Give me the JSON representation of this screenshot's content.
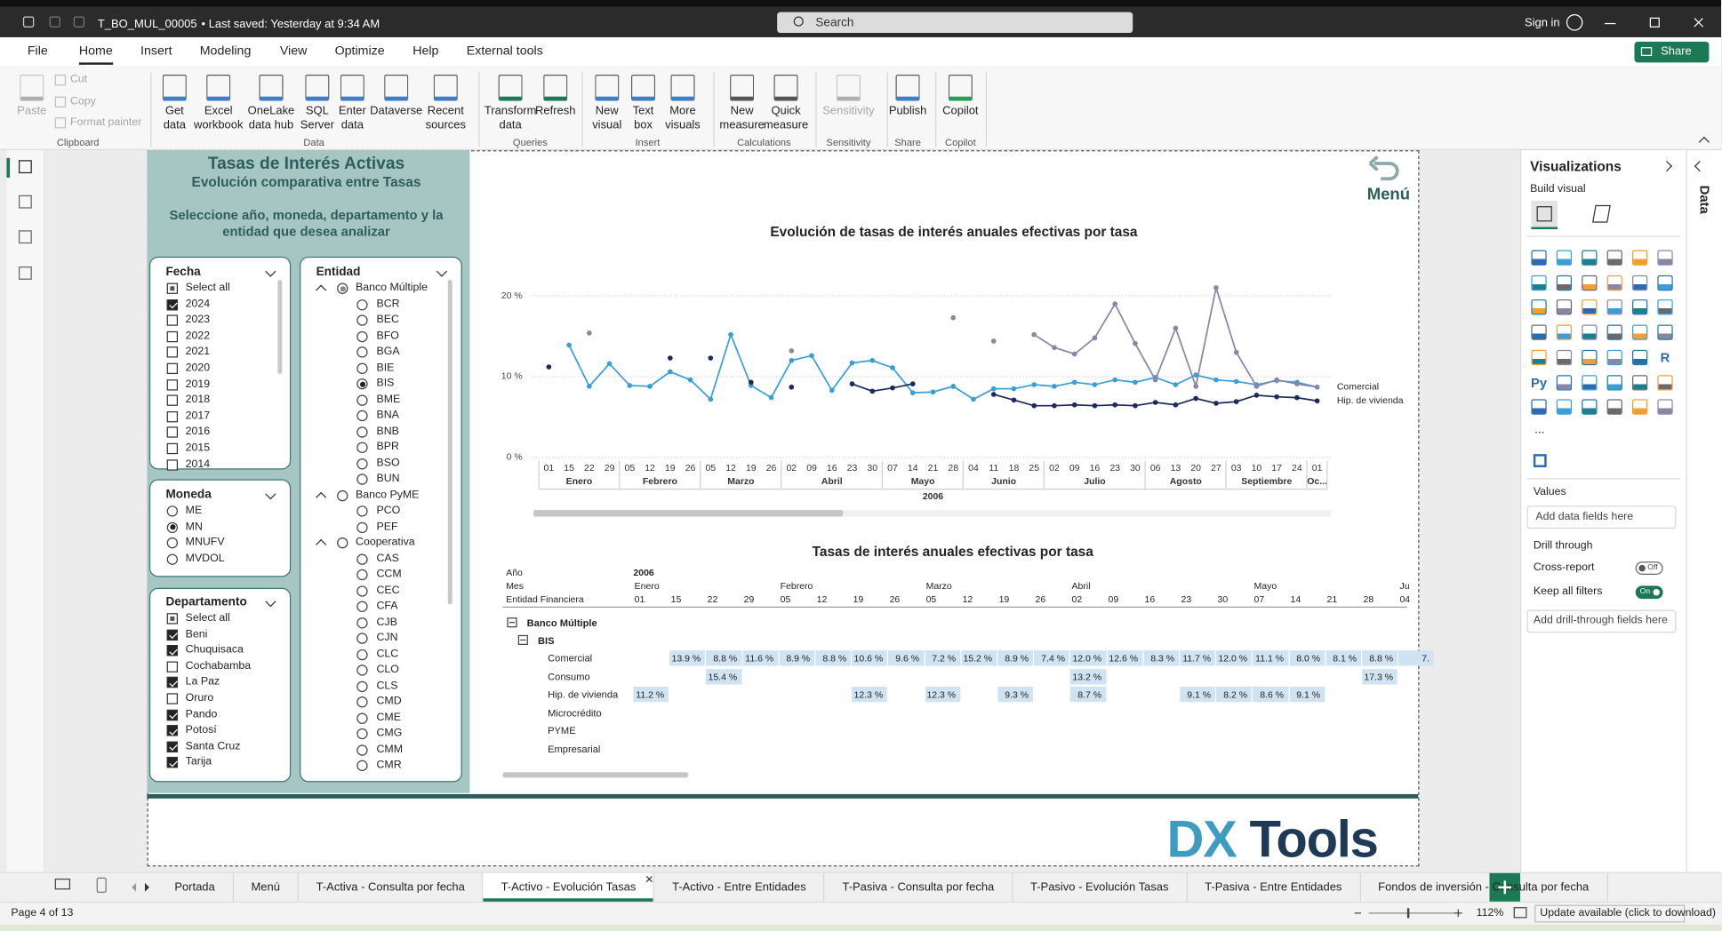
{
  "titlebar": {
    "file": "T_BO_MUL_00005",
    "saved": "• Last saved: Yesterday at 9:34 AM",
    "search": "Search",
    "signin": "Sign in"
  },
  "menu": [
    "File",
    "Home",
    "Insert",
    "Modeling",
    "View",
    "Optimize",
    "Help",
    "External tools"
  ],
  "share": "Share",
  "ribbon": [
    {
      "group": "Clipboard",
      "disabled": true,
      "buttons": [
        "Paste"
      ],
      "small": [
        "Cut",
        "Copy",
        "Format painter"
      ]
    },
    {
      "group": "Data",
      "buttons": [
        "Get\ndata",
        "Excel\nworkbook",
        "OneLake\ndata hub",
        "SQL\nServer",
        "Enter\ndata",
        "Dataverse",
        "Recent\nsources"
      ]
    },
    {
      "group": "Queries",
      "buttons": [
        "Transform\ndata",
        "Refresh"
      ]
    },
    {
      "group": "Insert",
      "buttons": [
        "New\nvisual",
        "Text\nbox",
        "More\nvisuals"
      ]
    },
    {
      "group": "Calculations",
      "buttons": [
        "New\nmeasure",
        "Quick\nmeasure"
      ]
    },
    {
      "group": "Sensitivity",
      "disabled": true,
      "buttons": [
        "Sensitivity"
      ]
    },
    {
      "group": "Share",
      "buttons": [
        "Publish"
      ]
    },
    {
      "group": "Copilot",
      "buttons": [
        "Copilot"
      ]
    }
  ],
  "report": {
    "title": "Tasas de Interés Activas",
    "subtitle": "Evolución comparativa entre Tasas",
    "instruction": "Seleccione año, moneda, departamento y la entidad que desea analizar",
    "menu_button": "Menú",
    "logo": [
      "DX",
      "Tools"
    ]
  },
  "slicers": {
    "fecha": {
      "title": "Fecha",
      "items": [
        {
          "label": "Select all",
          "checked": "partial"
        },
        {
          "label": "2024",
          "checked": true
        },
        {
          "label": "2023",
          "checked": false
        },
        {
          "label": "2022",
          "checked": false
        },
        {
          "label": "2021",
          "checked": false
        },
        {
          "label": "2020",
          "checked": false
        },
        {
          "label": "2019",
          "checked": false
        },
        {
          "label": "2018",
          "checked": false
        },
        {
          "label": "2017",
          "checked": false
        },
        {
          "label": "2016",
          "checked": false
        },
        {
          "label": "2015",
          "checked": false
        },
        {
          "label": "2014",
          "checked": false
        }
      ]
    },
    "moneda": {
      "title": "Moneda",
      "items": [
        {
          "label": "ME",
          "checked": false
        },
        {
          "label": "MN",
          "checked": true
        },
        {
          "label": "MNUFV",
          "checked": false
        },
        {
          "label": "MVDOL",
          "checked": false
        }
      ]
    },
    "departamento": {
      "title": "Departamento",
      "items": [
        {
          "label": "Select all",
          "checked": "partial"
        },
        {
          "label": "Beni",
          "checked": true
        },
        {
          "label": "Chuquisaca",
          "checked": true
        },
        {
          "label": "Cochabamba",
          "checked": false
        },
        {
          "label": "La Paz",
          "checked": true
        },
        {
          "label": "Oruro",
          "checked": false
        },
        {
          "label": "Pando",
          "checked": true
        },
        {
          "label": "Potosí",
          "checked": true
        },
        {
          "label": "Santa Cruz",
          "checked": true
        },
        {
          "label": "Tarija",
          "checked": true
        }
      ]
    },
    "entidad": {
      "title": "Entidad",
      "groups": [
        {
          "label": "Banco Múltiple",
          "checked": "partial",
          "items": [
            {
              "label": "BCR",
              "checked": false
            },
            {
              "label": "BEC",
              "checked": false
            },
            {
              "label": "BFO",
              "checked": false
            },
            {
              "label": "BGA",
              "checked": false
            },
            {
              "label": "BIE",
              "checked": false
            },
            {
              "label": "BIS",
              "checked": true
            },
            {
              "label": "BME",
              "checked": false
            },
            {
              "label": "BNA",
              "checked": false
            },
            {
              "label": "BNB",
              "checked": false
            },
            {
              "label": "BPR",
              "checked": false
            },
            {
              "label": "BSO",
              "checked": false
            },
            {
              "label": "BUN",
              "checked": false
            }
          ]
        },
        {
          "label": "Banco PyME",
          "checked": false,
          "items": [
            {
              "label": "PCO",
              "checked": false
            },
            {
              "label": "PEF",
              "checked": false
            }
          ]
        },
        {
          "label": "Cooperativa",
          "checked": false,
          "items": [
            {
              "label": "CAS",
              "checked": false
            },
            {
              "label": "CCM",
              "checked": false
            },
            {
              "label": "CEC",
              "checked": false
            },
            {
              "label": "CFA",
              "checked": false
            },
            {
              "label": "CJB",
              "checked": false
            },
            {
              "label": "CJN",
              "checked": false
            },
            {
              "label": "CLC",
              "checked": false
            },
            {
              "label": "CLO",
              "checked": false
            },
            {
              "label": "CLS",
              "checked": false
            },
            {
              "label": "CMD",
              "checked": false
            },
            {
              "label": "CME",
              "checked": false
            },
            {
              "label": "CMG",
              "checked": false
            },
            {
              "label": "CMM",
              "checked": false
            },
            {
              "label": "CMR",
              "checked": false
            }
          ]
        }
      ]
    }
  },
  "chart_data": {
    "type": "line",
    "title": "Evolución de tasas de interés anuales efectivas por tasa",
    "categories": [
      "01",
      "15",
      "22",
      "29",
      "05",
      "12",
      "19",
      "26",
      "05",
      "12",
      "19",
      "26",
      "02",
      "09",
      "16",
      "23",
      "30",
      "07",
      "14",
      "21",
      "28",
      "04",
      "11",
      "18",
      "25",
      "02",
      "09",
      "16",
      "23",
      "30",
      "06",
      "13",
      "20",
      "27",
      "03",
      "10",
      "17",
      "24",
      "01"
    ],
    "x_groups": [
      {
        "label": "Enero",
        "count": 4
      },
      {
        "label": "Febrero",
        "count": 4
      },
      {
        "label": "Marzo",
        "count": 4
      },
      {
        "label": "Abril",
        "count": 5
      },
      {
        "label": "Mayo",
        "count": 4
      },
      {
        "label": "Junio",
        "count": 4
      },
      {
        "label": "Julio",
        "count": 5
      },
      {
        "label": "Agosto",
        "count": 4
      },
      {
        "label": "Septiembre",
        "count": 4
      },
      {
        "label": "Oc...",
        "count": 1
      }
    ],
    "x_year": "2006",
    "series": [
      {
        "name": "Comercial",
        "color": "#3a9fd6",
        "values": [
          null,
          13.9,
          8.8,
          11.6,
          8.9,
          8.8,
          10.6,
          9.6,
          7.2,
          15.2,
          8.9,
          7.4,
          12.0,
          12.6,
          8.3,
          11.7,
          12.0,
          11.1,
          8.0,
          8.1,
          8.8,
          7.2,
          8.5,
          8.5,
          9.0,
          8.8,
          9.3,
          9.0,
          9.6,
          9.3,
          9.9,
          9.0,
          10.2,
          9.6,
          9.4,
          9.0,
          9.5,
          9.3,
          8.7
        ]
      },
      {
        "name": "Hip. de vivienda",
        "color": "#1c2a5c",
        "values": [
          11.2,
          null,
          null,
          null,
          null,
          null,
          12.3,
          null,
          12.3,
          null,
          9.3,
          null,
          8.7,
          null,
          null,
          9.1,
          8.2,
          8.6,
          9.1,
          null,
          null,
          null,
          7.8,
          7.1,
          6.4,
          6.4,
          6.5,
          6.4,
          6.5,
          6.4,
          6.8,
          6.5,
          7.3,
          6.7,
          6.9,
          7.7,
          7.5,
          7.4,
          7.0
        ]
      },
      {
        "color": "#8a86a6",
        "values": [
          null,
          null,
          15.4,
          null,
          null,
          null,
          null,
          null,
          null,
          null,
          null,
          null,
          13.2,
          null,
          null,
          null,
          null,
          null,
          null,
          null,
          17.3,
          null,
          14.4,
          null,
          15.2,
          13.6,
          12.8,
          14.8,
          19.0,
          14.1,
          9.6,
          16.0,
          8.8,
          21.0,
          13.0,
          8.8,
          9.6,
          9.1,
          8.7
        ]
      }
    ],
    "ylim": [
      0,
      22
    ],
    "yticks": [
      {
        "value": 0,
        "label": "0 %"
      },
      {
        "value": 10,
        "label": "10 %"
      },
      {
        "value": 20,
        "label": "20 %"
      }
    ],
    "grid": true
  },
  "table": {
    "title": "Tasas de interés anuales efectivas por tasa",
    "row_headers": [
      "Año",
      "Mes",
      "Entidad Financiera"
    ],
    "year": "2006",
    "months": [
      {
        "label": "Enero",
        "span": 4
      },
      {
        "label": "Febrero",
        "span": 4
      },
      {
        "label": "Marzo",
        "span": 4
      },
      {
        "label": "Abril",
        "span": 5
      },
      {
        "label": "Mayo",
        "span": 4
      },
      {
        "label": "Ju",
        "span": 1
      }
    ],
    "days": [
      "01",
      "15",
      "22",
      "29",
      "05",
      "12",
      "19",
      "26",
      "05",
      "12",
      "19",
      "26",
      "02",
      "09",
      "16",
      "23",
      "30",
      "07",
      "14",
      "21",
      "28",
      "04"
    ],
    "group": "Banco Múltiple",
    "subgroup": "BIS",
    "rows": [
      {
        "label": "Comercial",
        "cells": [
          null,
          "13.9 %",
          "8.8 %",
          "11.6 %",
          "8.9 %",
          "8.8 %",
          "10.6 %",
          "9.6 %",
          "7.2 %",
          "15.2 %",
          "8.9 %",
          "7.4 %",
          "12.0 %",
          "12.6 %",
          "8.3 %",
          "11.7 %",
          "12.0 %",
          "11.1 %",
          "8.0 %",
          "8.1 %",
          "8.8 %",
          "7."
        ]
      },
      {
        "label": "Consumo",
        "cells": [
          null,
          null,
          "15.4 %",
          null,
          null,
          null,
          null,
          null,
          null,
          null,
          null,
          null,
          "13.2 %",
          null,
          null,
          null,
          null,
          null,
          null,
          null,
          "17.3 %",
          null
        ]
      },
      {
        "label": "Hip. de vivienda",
        "cells": [
          "11.2 %",
          null,
          null,
          null,
          null,
          null,
          "12.3 %",
          null,
          "12.3 %",
          null,
          "9.3 %",
          null,
          "8.7 %",
          null,
          null,
          "9.1 %",
          "8.2 %",
          "8.6 %",
          "9.1 %",
          null,
          null,
          null
        ]
      },
      {
        "label": "Microcrédito",
        "cells": []
      },
      {
        "label": "PYME",
        "cells": []
      },
      {
        "label": "Empresarial",
        "cells": []
      }
    ]
  },
  "visualizations": {
    "title": "Visualizations",
    "build": "Build visual",
    "data_tab": "Data",
    "icon_labels": {
      "python": "Py",
      "r": "R",
      "more": "..."
    },
    "values": "Values",
    "values_placeholder": "Add data fields here",
    "drill": "Drill through",
    "cross_report": "Cross-report",
    "cross_state": "Off",
    "keep_filters": "Keep all filters",
    "keep_state": "On",
    "drill_placeholder": "Add drill-through fields here"
  },
  "tabs": {
    "items": [
      "Portada",
      "Menú",
      "T-Activa - Consulta por fecha",
      "T-Activo - Evolución Tasas",
      "T-Activo - Entre Entidades",
      "T-Pasiva - Consulta por fecha",
      "T-Pasivo - Evolución Tasas",
      "T-Pasiva - Entre Entidades",
      "Fondos de inversión - Consulta por fecha"
    ],
    "active": 3
  },
  "status": {
    "page": "Page 4 of 13",
    "zoom": "112%",
    "update": "Update available (click to download)"
  }
}
